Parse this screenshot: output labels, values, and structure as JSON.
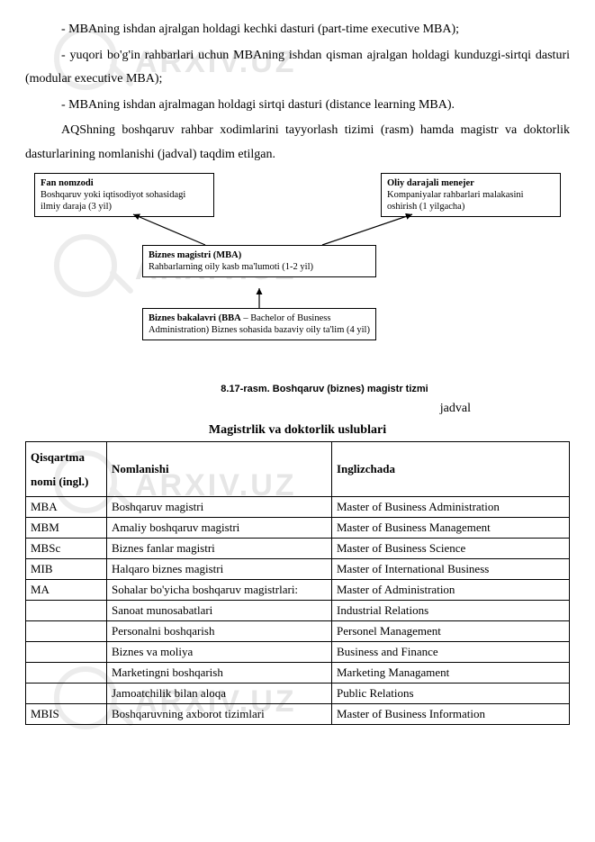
{
  "body_paragraphs": {
    "p1": "- MBAning ishdan ajralgan holdagi kechki dasturi (part-time executive MBA);",
    "p2": "- yuqori bo'g'in rahbarlari uchun MBAning ishdan qisman ajralgan holdagi kunduzgi-sirtqi dasturi (modular executive MBA);",
    "p3": "- MBAning ishdan ajralmagan holdagi sirtqi dasturi (distance learning MBA).",
    "p4": "AQShning boshqaruv rahbar xodimlarini tayyorlash tizimi (rasm) hamda magistr va doktorlik dasturlarining nomlanishi (jadval) taqdim etilgan."
  },
  "diagram": {
    "box_left": {
      "title": "Fan nomzodi",
      "sub": "Boshqaruv yoki iqtisodiyot sohasidagi ilmiy daraja (3 yil)"
    },
    "box_right": {
      "title": "Oliy darajali menejer",
      "sub": "Kompaniyalar rahbarlari malakasini oshirish (1 yilgacha)"
    },
    "box_mid": {
      "title": "Biznes magistri (MBA)",
      "sub": "Rahbarlarning oily kasb ma'lumoti        (1-2 yil)"
    },
    "box_bottom": {
      "title_prefix": "Biznes bakalavri (BBA",
      "title_suffix": " – Bachelor of Business Administration) Biznes sohasida bazaviy oily ta'lim (4 yil)"
    },
    "arrow_color": "#000000"
  },
  "figure_caption": "8.17-rasm. Boshqaruv (biznes) magistr tizmi",
  "jadval_label": "jadval",
  "table_title": "Magistrlik va doktorlik uslublari",
  "table": {
    "headers": {
      "c1": "Qisqartma nomi (ingl.)",
      "c2": "Nomlanishi",
      "c3": "Inglizchada"
    },
    "rows": [
      {
        "c1": "MBA",
        "c2": "Boshqaruv magistri",
        "c3": "Master of Business Administration"
      },
      {
        "c1": "MBM",
        "c2": "Amaliy boshqaruv magistri",
        "c3": "Master of Business Management"
      },
      {
        "c1": "MBSc",
        "c2": "Biznes fanlar magistri",
        "c3": "Master of Business Science"
      },
      {
        "c1": "MIB",
        "c2": "Halqaro biznes magistri",
        "c3": "Master of International Business"
      },
      {
        "c1": "MA",
        "c2": "Sohalar bo'yicha boshqaruv magistrlari:",
        "c3": "Master of Administration"
      },
      {
        "c1": "",
        "c2": "Sanoat munosabatlari",
        "c3": "Industrial Relations"
      },
      {
        "c1": "",
        "c2": "Personalni boshqarish",
        "c3": "Personel Management"
      },
      {
        "c1": "",
        "c2": "Biznes va moliya",
        "c3": "Business and Finance"
      },
      {
        "c1": "",
        "c2": "Marketingni boshqarish",
        "c3": "Marketing Managament"
      },
      {
        "c1": "",
        "c2": "Jamoatchilik bilan aloqa",
        "c3": "Public Relations"
      },
      {
        "c1": "MBIS",
        "c2": "Boshqaruvning axborot tizimlari",
        "c3": "Master of Business Information",
        "c2_justify": true,
        "c3_justify": true
      }
    ]
  },
  "watermark": {
    "text": "ARXIV.UZ"
  }
}
